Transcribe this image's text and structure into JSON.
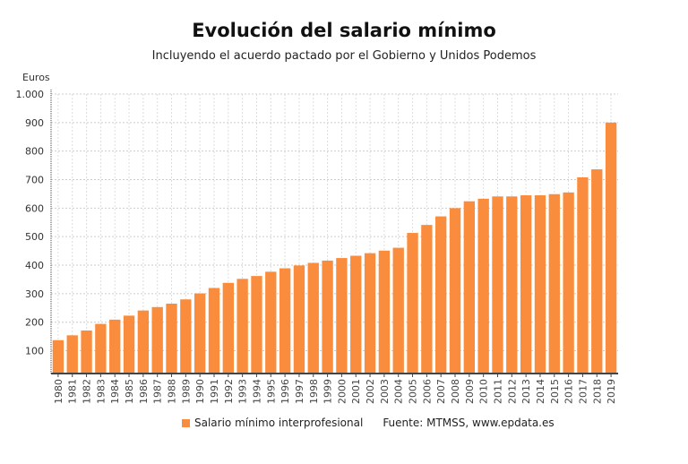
{
  "chart_data": {
    "type": "bar",
    "title": "Evolución del salario mínimo",
    "subtitle": "Incluyendo el acuerdo pactado por el Gobierno y Unidos Podemos",
    "ylabel": "Euros",
    "xlabel": "",
    "ylim": [
      20,
      1000
    ],
    "yticks": [
      100,
      200,
      300,
      400,
      500,
      600,
      700,
      800,
      900,
      1000
    ],
    "ytick_labels": [
      "100",
      "200",
      "300",
      "400",
      "500",
      "600",
      "700",
      "800",
      "900",
      "1.000"
    ],
    "grid": true,
    "categories": [
      "1980",
      "1981",
      "1982",
      "1983",
      "1984",
      "1985",
      "1986",
      "1987",
      "1988",
      "1989",
      "1990",
      "1991",
      "1992",
      "1993",
      "1994",
      "1995",
      "1996",
      "1997",
      "1998",
      "1999",
      "2000",
      "2001",
      "2002",
      "2003",
      "2004",
      "2005",
      "2006",
      "2007",
      "2008",
      "2009",
      "2010",
      "2011",
      "2012",
      "2013",
      "2014",
      "2015",
      "2016",
      "2017",
      "2018",
      "2019"
    ],
    "series": [
      {
        "name": "Salario mínimo interprofesional",
        "color": "#f98d3d",
        "values": [
          137,
          154,
          171,
          194,
          209,
          223,
          241,
          253,
          265,
          280,
          301,
          320,
          338,
          352,
          362,
          377,
          389,
          399,
          408,
          416,
          425,
          433,
          442,
          451,
          461,
          513,
          541,
          571,
          600,
          624,
          633,
          641,
          641,
          645,
          645,
          649,
          655,
          708,
          736,
          900
        ]
      }
    ],
    "legend_position": "bottom",
    "source": "Fuente: MTMSS, www.epdata.es"
  }
}
